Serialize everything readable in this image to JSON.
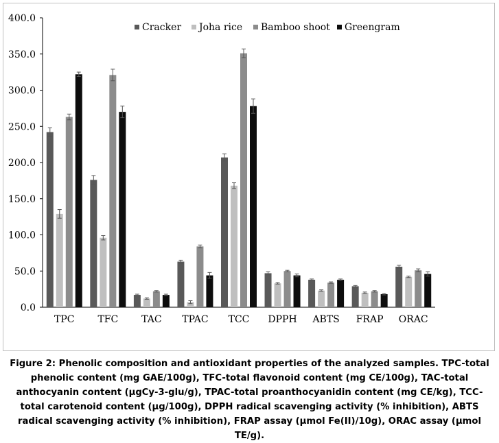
{
  "chart_data": {
    "type": "bar",
    "categories": [
      "TPC",
      "TFC",
      "TAC",
      "TPAC",
      "TCC",
      "DPPH",
      "ABTS",
      "FRAP",
      "ORAC"
    ],
    "series": [
      {
        "name": "Cracker",
        "color": "#595959",
        "values": [
          242,
          176,
          17,
          63,
          207,
          47,
          38,
          29,
          56
        ],
        "errors": [
          6,
          6,
          1,
          2,
          5,
          2,
          1,
          1,
          2
        ]
      },
      {
        "name": "Joha rice",
        "color": "#bfbfbf",
        "values": [
          129,
          96,
          12,
          7,
          168,
          33,
          23,
          20,
          42
        ],
        "errors": [
          6,
          3,
          1,
          2,
          4,
          1,
          1,
          1,
          1
        ]
      },
      {
        "name": "Bamboo shoot",
        "color": "#8c8c8c",
        "values": [
          263,
          321,
          22,
          84,
          351,
          50,
          34,
          22,
          51
        ],
        "errors": [
          4,
          8,
          1,
          2,
          6,
          1,
          1,
          1,
          2
        ]
      },
      {
        "name": "Greengram",
        "color": "#0d0d0d",
        "values": [
          322,
          270,
          17,
          44,
          278,
          44,
          38,
          18,
          46
        ],
        "errors": [
          3,
          8,
          1,
          4,
          10,
          2,
          1,
          1,
          3
        ]
      }
    ],
    "ylim": [
      0,
      400
    ],
    "yticks": [
      "0.0",
      "50.0",
      "100.0",
      "150.0",
      "200.0",
      "250.0",
      "300.0",
      "350.0",
      "400.0"
    ],
    "legend_position": "top-center",
    "grid": false,
    "error_bars": true
  },
  "caption": "Figure 2: Phenolic composition and antioxidant properties of the analyzed samples. TPC-total phenolic content (mg GAE/100g), TFC-total flavonoid content (mg CE/100g), TAC-total anthocyanin content (μgCy-3-glu/g), TPAC-total proanthocyanidin content (mg CE/kg), TCC-total carotenoid content (μg/100g), DPPH radical scavenging activity (% inhibition), ABTS radical scavenging activity (% inhibition), FRAP assay (μmol Fe(II)/10g), ORAC assay (μmol TE/g)."
}
